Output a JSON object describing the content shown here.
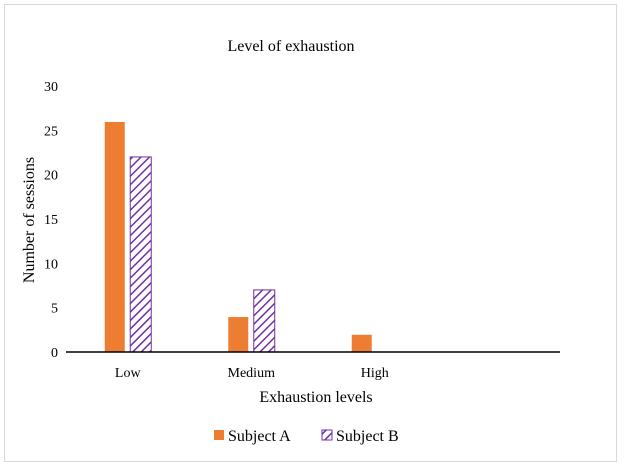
{
  "chart_data": {
    "type": "bar",
    "title": "Level of exhaustion",
    "xlabel": "Exhaustion levels",
    "ylabel": "Number of sessions",
    "categories": [
      "Low",
      "Medium",
      "High",
      ""
    ],
    "ylim": [
      0,
      30
    ],
    "yticks": [
      0,
      5,
      10,
      15,
      20,
      25,
      30
    ],
    "grid": false,
    "legend_position": "bottom",
    "series": [
      {
        "name": "Subject A",
        "values": [
          26,
          4,
          2,
          0
        ],
        "color": "#ed7d31",
        "pattern": "solid"
      },
      {
        "name": "Subject B",
        "values": [
          22,
          7,
          0,
          0
        ],
        "color": "#7030a0",
        "pattern": "diagonal-hatch"
      }
    ]
  }
}
